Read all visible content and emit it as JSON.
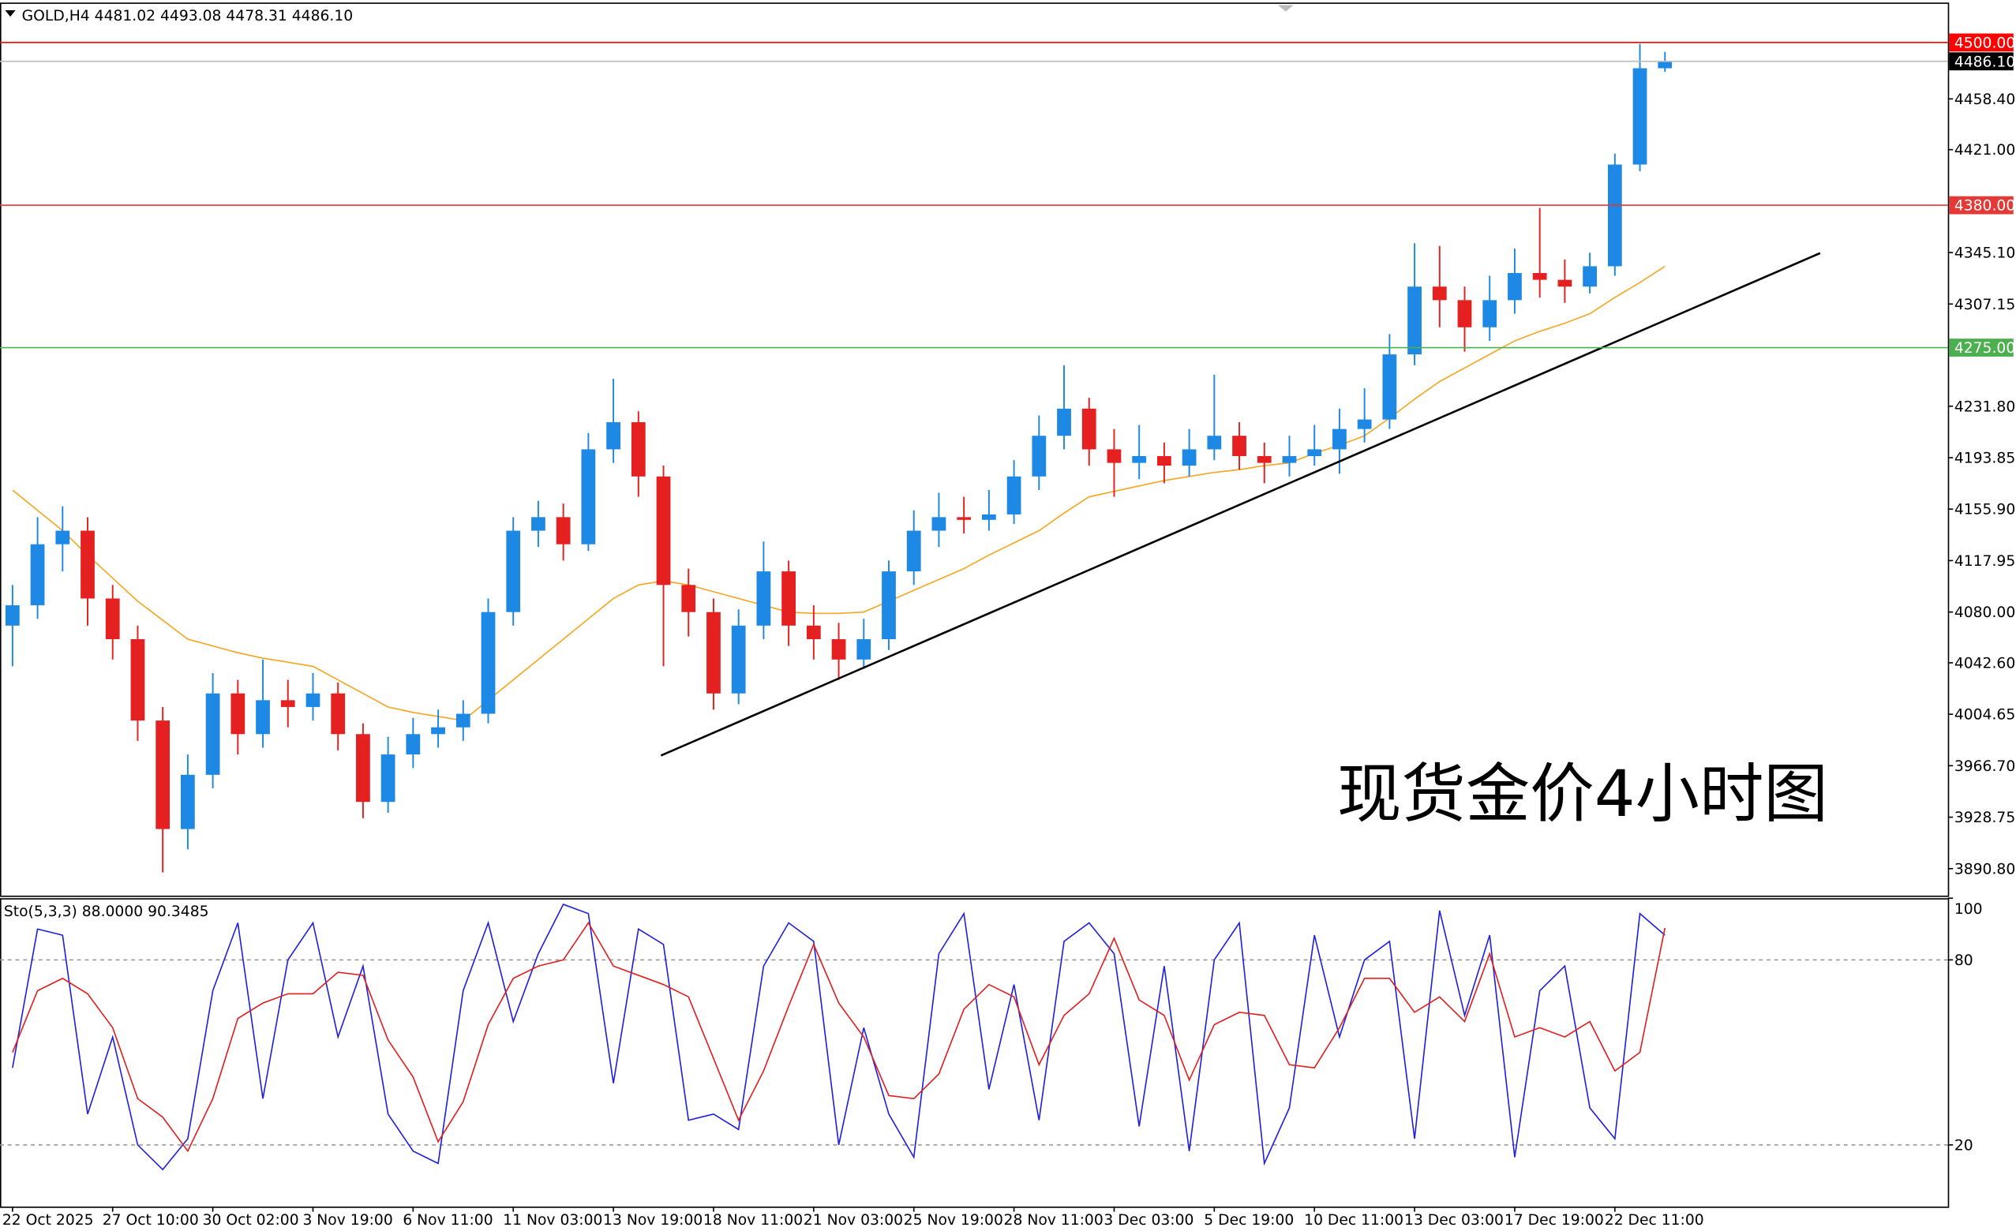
{
  "chart_data": [
    {
      "type": "candlestick",
      "title": "GOLD,H4  4481.02 4493.08 4478.31 4486.10",
      "annotation": "现货金价4小时图",
      "categories": [
        "22 Oct 2025",
        null,
        null,
        null,
        "27 Oct 10:00",
        null,
        null,
        null,
        "30 Oct 02:00",
        null,
        null,
        null,
        "3 Nov 19:00",
        null,
        null,
        null,
        "6 Nov 11:00",
        null,
        null,
        null,
        "11 Nov 03:00",
        null,
        null,
        null,
        "13 Nov 19:00",
        null,
        null,
        null,
        "18 Nov 11:00",
        null,
        null,
        null,
        "21 Nov 03:00",
        null,
        null,
        null,
        "25 Nov 19:00",
        null,
        null,
        null,
        "28 Nov 11:00",
        null,
        null,
        null,
        "3 Dec 03:00",
        null,
        null,
        null,
        "5 Dec 19:00",
        null,
        null,
        null,
        "10 Dec 11:00",
        null,
        null,
        null,
        "13 Dec 03:00",
        null,
        null,
        null,
        "17 Dec 19:00",
        null,
        null,
        null,
        "22 Dec 11:00",
        null,
        null
      ],
      "open": [
        4070,
        4085,
        4130,
        4140,
        4090,
        4060,
        4000,
        3920,
        3960,
        4020,
        3990,
        4015,
        4010,
        4020,
        3990,
        3940,
        3975,
        3990,
        3995,
        4005,
        4080,
        4140,
        4150,
        4130,
        4200,
        4220,
        4180,
        4100,
        4080,
        4020,
        4070,
        4110,
        4070,
        4060,
        4045,
        4060,
        4110,
        4140,
        4150,
        4148,
        4152,
        4180,
        4210,
        4230,
        4200,
        4190,
        4195,
        4188,
        4200,
        4210,
        4195,
        4190,
        4195,
        4200,
        4215,
        4222,
        4270,
        4320,
        4310,
        4290,
        4310,
        4330,
        4325,
        4320,
        4335,
        4410,
        4481.02
      ],
      "high": [
        4100,
        4150,
        4158,
        4150,
        4100,
        4070,
        4010,
        3975,
        4035,
        4030,
        4045,
        4030,
        4035,
        4028,
        3998,
        3988,
        4002,
        4008,
        4015,
        4090,
        4150,
        4162,
        4160,
        4212,
        4252,
        4228,
        4188,
        4112,
        4090,
        4082,
        4132,
        4118,
        4085,
        4072,
        4075,
        4118,
        4155,
        4168,
        4165,
        4170,
        4192,
        4225,
        4262,
        4238,
        4215,
        4218,
        4205,
        4215,
        4255,
        4220,
        4205,
        4210,
        4218,
        4230,
        4245,
        4285,
        4352,
        4350,
        4320,
        4328,
        4348,
        4378,
        4340,
        4345,
        4418,
        4499,
        4493.08
      ],
      "low": [
        4040,
        4075,
        4110,
        4070,
        4045,
        3985,
        3888,
        3905,
        3950,
        3975,
        3980,
        3995,
        4000,
        3978,
        3928,
        3932,
        3965,
        3980,
        3985,
        3998,
        4070,
        4128,
        4118,
        4125,
        4190,
        4165,
        4040,
        4062,
        4008,
        4012,
        4060,
        4055,
        4045,
        4030,
        4038,
        4052,
        4100,
        4128,
        4138,
        4140,
        4145,
        4170,
        4200,
        4188,
        4165,
        4178,
        4175,
        4180,
        4192,
        4185,
        4175,
        4180,
        4188,
        4182,
        4205,
        4215,
        4262,
        4290,
        4272,
        4280,
        4300,
        4312,
        4308,
        4315,
        4328,
        4405,
        4478.31
      ],
      "close": [
        4085,
        4130,
        4140,
        4090,
        4060,
        4000,
        3920,
        3960,
        4020,
        3990,
        4015,
        4010,
        4020,
        3990,
        3940,
        3975,
        3990,
        3995,
        4005,
        4080,
        4140,
        4150,
        4130,
        4200,
        4220,
        4180,
        4100,
        4080,
        4020,
        4070,
        4110,
        4070,
        4060,
        4045,
        4060,
        4110,
        4140,
        4150,
        4148,
        4152,
        4180,
        4210,
        4230,
        4200,
        4190,
        4195,
        4188,
        4200,
        4210,
        4195,
        4190,
        4195,
        4200,
        4215,
        4222,
        4270,
        4320,
        4310,
        4290,
        4310,
        4330,
        4325,
        4320,
        4335,
        4410,
        4481.02,
        4486.1
      ],
      "up_color": "#1e88e5",
      "down_color": "#e52020",
      "ma": {
        "color": "#f5a623",
        "values": [
          4170,
          4155,
          4140,
          4122,
          4105,
          4088,
          4074,
          4060,
          4055,
          4050,
          4046,
          4043,
          4040,
          4030,
          4020,
          4010,
          4006,
          4003,
          4000,
          4015,
          4030,
          4045,
          4060,
          4075,
          4090,
          4100,
          4103,
          4100,
          4095,
          4090,
          4085,
          4080,
          4079,
          4079,
          4080,
          4088,
          4096,
          4104,
          4112,
          4122,
          4131,
          4140,
          4153,
          4165,
          4169,
          4173,
          4177,
          4180,
          4183,
          4185,
          4188,
          4190,
          4197,
          4203,
          4210,
          4223,
          4237,
          4250,
          4260,
          4270,
          4280,
          4287,
          4293,
          4300,
          4312,
          4323,
          4335
        ]
      },
      "levels": [
        {
          "value": 4500,
          "label": "4500.00",
          "color": "#ff0000"
        },
        {
          "value": 4486.1,
          "label": "4486.10",
          "color": "#c0c0c0"
        },
        {
          "value": 4380,
          "label": "4380.00",
          "color": "#e53935"
        },
        {
          "value": 4275,
          "label": "4275.00",
          "color": "#4caf50"
        }
      ],
      "trendline": {
        "x": [
          25.9,
          72.2
        ],
        "y": [
          3974.2,
          4344.7
        ],
        "color": "#000000"
      },
      "xlim": [
        -0.5,
        77.3
      ],
      "ylim": [
        3870.9,
        4528.5
      ],
      "yticks": [
        {
          "value": 4458.4,
          "label": "4458.40"
        },
        {
          "value": 4421,
          "label": "4421.00"
        },
        {
          "value": 4345.1,
          "label": "4345.10"
        },
        {
          "value": 4307.15,
          "label": "4307.15"
        },
        {
          "value": 4231.8,
          "label": "4231.80"
        },
        {
          "value": 4193.85,
          "label": "4193.85"
        },
        {
          "value": 4155.9,
          "label": "4155.90"
        },
        {
          "value": 4117.95,
          "label": "4117.95"
        },
        {
          "value": 4080,
          "label": "4080.00"
        },
        {
          "value": 4042.6,
          "label": "4042.60"
        },
        {
          "value": 4004.65,
          "label": "4004.65"
        },
        {
          "value": 3966.7,
          "label": "3966.70"
        },
        {
          "value": 3928.75,
          "label": "3928.75"
        },
        {
          "value": 3890.8,
          "label": "3890.80"
        }
      ]
    },
    {
      "type": "stochastic",
      "title": "Sto(5,3,3) 88.0000 90.3485",
      "series": [
        {
          "color": "#2020e0",
          "values": [
            45,
            90,
            88,
            30,
            55,
            20,
            12,
            22,
            70,
            92,
            35,
            80,
            92,
            55,
            78,
            30,
            18,
            14,
            70,
            92,
            60,
            82,
            98,
            95,
            40,
            90,
            85,
            28,
            30,
            25,
            78,
            92,
            86,
            20,
            58,
            30,
            16,
            82,
            95,
            38,
            72,
            28,
            86,
            92,
            82,
            26,
            78,
            18,
            80,
            92,
            14,
            32,
            88,
            55,
            80,
            86,
            22,
            96,
            62,
            88,
            16,
            70,
            78,
            32,
            22,
            95,
            88
          ]
        },
        {
          "color": "#e02020",
          "values": [
            50,
            70,
            74,
            69,
            58,
            35,
            29,
            18,
            35,
            61,
            66,
            69,
            69,
            76,
            75,
            54,
            42,
            21,
            34,
            59,
            74,
            78,
            80,
            92,
            78,
            75,
            72,
            68,
            48,
            28,
            44,
            65,
            85,
            66,
            55,
            36,
            35,
            43,
            64,
            72,
            68,
            46,
            62,
            69,
            87,
            67,
            62,
            41,
            59,
            63,
            62,
            46,
            45,
            58,
            74,
            74,
            63,
            68,
            60,
            82,
            55,
            58,
            55,
            60,
            44,
            50,
            90.3485
          ]
        }
      ],
      "levels": [
        20,
        80
      ],
      "ylim": [
        0,
        100
      ],
      "yticks": [
        20,
        80,
        100
      ]
    }
  ]
}
